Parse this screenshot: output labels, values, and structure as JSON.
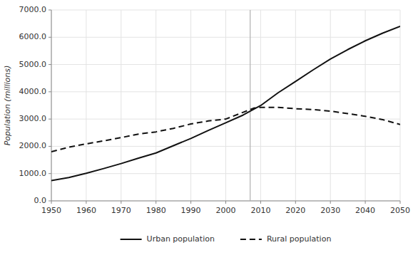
{
  "chart_data": {
    "type": "line",
    "y_label": "Population (millions)",
    "x": [
      1950,
      1955,
      1960,
      1965,
      1970,
      1975,
      1980,
      1985,
      1990,
      1995,
      2000,
      2005,
      2008,
      2010,
      2015,
      2020,
      2025,
      2030,
      2035,
      2040,
      2045,
      2050
    ],
    "series": [
      {
        "name": "Urban population",
        "color": "#111111",
        "line_style": "solid",
        "values": [
          746,
          857,
          1012,
          1185,
          1367,
          1569,
          1756,
          2025,
          2290,
          2584,
          2862,
          3148,
          3361,
          3495,
          3963,
          4378,
          4800,
          5200,
          5550,
          5870,
          6150,
          6400
        ]
      },
      {
        "name": "Rural population",
        "color": "#111111",
        "line_style": "dashed",
        "values": [
          1800,
          1970,
          2090,
          2200,
          2320,
          2450,
          2530,
          2660,
          2820,
          2930,
          3000,
          3250,
          3400,
          3430,
          3430,
          3380,
          3350,
          3290,
          3200,
          3100,
          2980,
          2800
        ]
      }
    ],
    "annotations": [
      {
        "x": 2007
      }
    ],
    "xlim": [
      1950,
      2050
    ],
    "xticks": [
      1950,
      1960,
      1970,
      1980,
      1990,
      2000,
      2010,
      2020,
      2030,
      2040,
      2050
    ],
    "ylim": [
      0,
      7000
    ],
    "yticks": [
      {
        "value": 0,
        "label": "0.0"
      },
      {
        "value": 1000,
        "label": "1000.0"
      },
      {
        "value": 2000,
        "label": "2000.0"
      },
      {
        "value": 3000,
        "label": "3000.0"
      },
      {
        "value": 4000,
        "label": "4000.0"
      },
      {
        "value": 5000,
        "label": "5000.0"
      },
      {
        "value": 6000,
        "label": "6000.0"
      },
      {
        "value": 7000,
        "label": "7000.0"
      }
    ],
    "grid": true,
    "legend": "bottom"
  }
}
